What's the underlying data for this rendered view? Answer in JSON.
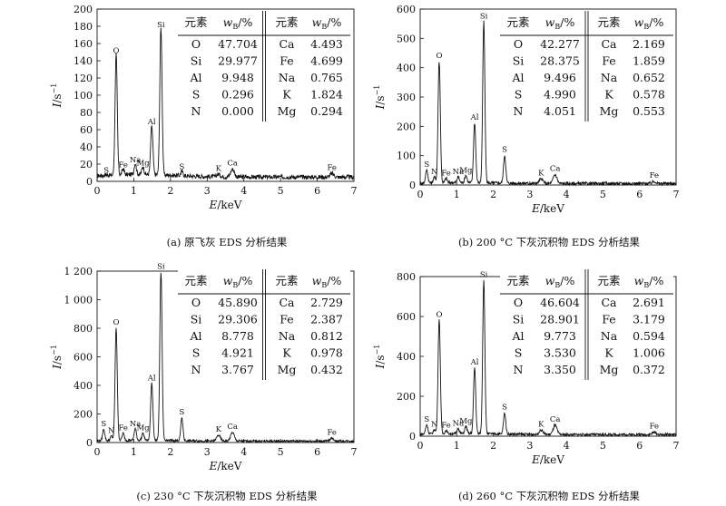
{
  "chart_data": [
    {
      "type": "line",
      "caption": "(a) 原飞灰 EDS 分析结果",
      "xlabel_var": "E",
      "xlabel_unit": "/keV",
      "ylabel_var": "I",
      "ylabel_unit": "/s",
      "xlim": [
        0,
        7
      ],
      "ylim": [
        0,
        200
      ],
      "xticks": [
        "0",
        "1",
        "2",
        "3",
        "4",
        "5",
        "6",
        "7"
      ],
      "yticks": [
        "0",
        "20",
        "40",
        "60",
        "80",
        "100",
        "120",
        "140",
        "160",
        "180",
        "200"
      ],
      "baseline": 5,
      "noise": 2.5,
      "peaks": [
        {
          "label": "S",
          "x": 0.25,
          "y": 6
        },
        {
          "label": "O",
          "x": 0.52,
          "y": 145
        },
        {
          "label": "Fe",
          "x": 0.71,
          "y": 12
        },
        {
          "label": "Na",
          "x": 1.04,
          "y": 18
        },
        {
          "label": "Mg",
          "x": 1.25,
          "y": 14
        },
        {
          "label": "Al",
          "x": 1.49,
          "y": 62
        },
        {
          "label": "Si",
          "x": 1.74,
          "y": 175
        },
        {
          "label": "S",
          "x": 2.31,
          "y": 10
        },
        {
          "label": "K",
          "x": 3.31,
          "y": 8
        },
        {
          "label": "Ca",
          "x": 3.69,
          "y": 14
        },
        {
          "label": "Fe",
          "x": 6.4,
          "y": 9
        }
      ],
      "table": {
        "header": [
          "元素",
          "w_B/%",
          "元素",
          "w_B/%"
        ],
        "rows": [
          [
            "O",
            "47.704",
            "Ca",
            "4.493"
          ],
          [
            "Si",
            "29.977",
            "Fe",
            "4.699"
          ],
          [
            "Al",
            "9.948",
            "Na",
            "0.765"
          ],
          [
            "S",
            "0.296",
            "K",
            "1.824"
          ],
          [
            "N",
            "0.000",
            "Mg",
            "0.294"
          ]
        ]
      }
    },
    {
      "type": "line",
      "caption": "(b) 200 °C 下灰沉积物 EDS 分析结果",
      "xlabel_var": "E",
      "xlabel_unit": "/keV",
      "ylabel_var": "I",
      "ylabel_unit": "/s",
      "xlim": [
        0,
        7
      ],
      "ylim": [
        0,
        600
      ],
      "xticks": [
        "0",
        "1",
        "2",
        "3",
        "4",
        "5",
        "6",
        "7"
      ],
      "yticks": [
        "0",
        "100",
        "200",
        "300",
        "400",
        "500",
        "600"
      ],
      "baseline": 5,
      "noise": 5,
      "peaks": [
        {
          "label": "S",
          "x": 0.18,
          "y": 50
        },
        {
          "label": "N",
          "x": 0.39,
          "y": 25
        },
        {
          "label": "O",
          "x": 0.52,
          "y": 420
        },
        {
          "label": "Fe",
          "x": 0.71,
          "y": 20
        },
        {
          "label": "Na",
          "x": 1.04,
          "y": 25
        },
        {
          "label": "Mg",
          "x": 1.25,
          "y": 30
        },
        {
          "label": "Al",
          "x": 1.49,
          "y": 210
        },
        {
          "label": "Si",
          "x": 1.74,
          "y": 555
        },
        {
          "label": "S",
          "x": 2.31,
          "y": 100
        },
        {
          "label": "K",
          "x": 3.31,
          "y": 20
        },
        {
          "label": "Ca",
          "x": 3.69,
          "y": 35
        },
        {
          "label": "Fe",
          "x": 6.4,
          "y": 12
        }
      ],
      "table": {
        "header": [
          "元素",
          "w_B/%",
          "元素",
          "w_B/%"
        ],
        "rows": [
          [
            "O",
            "42.277",
            "Ca",
            "2.169"
          ],
          [
            "Si",
            "28.375",
            "Fe",
            "1.859"
          ],
          [
            "Al",
            "9.496",
            "Na",
            "0.652"
          ],
          [
            "S",
            "4.990",
            "K",
            "0.578"
          ],
          [
            "N",
            "4.051",
            "Mg",
            "0.553"
          ]
        ]
      }
    },
    {
      "type": "line",
      "caption": "(c) 230 °C 下灰沉积物 EDS 分析结果",
      "xlabel_var": "E",
      "xlabel_unit": "/keV",
      "ylabel_var": "I",
      "ylabel_unit": "/s",
      "xlim": [
        0,
        7
      ],
      "ylim": [
        0,
        1200
      ],
      "xticks": [
        "0",
        "1",
        "2",
        "3",
        "4",
        "5",
        "6",
        "7"
      ],
      "yticks": [
        "0",
        "200",
        "400",
        "600",
        "800",
        "1 000",
        "1 200"
      ],
      "baseline": 10,
      "noise": 8,
      "peaks": [
        {
          "label": "S",
          "x": 0.18,
          "y": 90
        },
        {
          "label": "N",
          "x": 0.39,
          "y": 40
        },
        {
          "label": "O",
          "x": 0.52,
          "y": 800
        },
        {
          "label": "Fe",
          "x": 0.71,
          "y": 60
        },
        {
          "label": "Na",
          "x": 1.04,
          "y": 90
        },
        {
          "label": "Mg",
          "x": 1.25,
          "y": 60
        },
        {
          "label": "Al",
          "x": 1.49,
          "y": 410
        },
        {
          "label": "Si",
          "x": 1.74,
          "y": 1190
        },
        {
          "label": "S",
          "x": 2.31,
          "y": 170
        },
        {
          "label": "K",
          "x": 3.31,
          "y": 50
        },
        {
          "label": "Ca",
          "x": 3.69,
          "y": 70
        },
        {
          "label": "Fe",
          "x": 6.4,
          "y": 30
        }
      ],
      "table": {
        "header": [
          "元素",
          "w_B/%",
          "元素",
          "w_B/%"
        ],
        "rows": [
          [
            "O",
            "45.890",
            "Ca",
            "2.729"
          ],
          [
            "Si",
            "29.306",
            "Fe",
            "2.387"
          ],
          [
            "Al",
            "8.778",
            "Na",
            "0.812"
          ],
          [
            "S",
            "4.921",
            "K",
            "0.978"
          ],
          [
            "N",
            "3.767",
            "Mg",
            "0.432"
          ]
        ]
      }
    },
    {
      "type": "line",
      "caption": "(d) 260 °C 下灰沉积物 EDS 分析结果",
      "xlabel_var": "E",
      "xlabel_unit": "/keV",
      "ylabel_var": "I",
      "ylabel_unit": "/s",
      "xlim": [
        0,
        7
      ],
      "ylim": [
        0,
        800
      ],
      "xticks": [
        "0",
        "1",
        "2",
        "3",
        "4",
        "5",
        "6",
        "7"
      ],
      "yticks": [
        "0",
        "200",
        "400",
        "600",
        "800"
      ],
      "baseline": 8,
      "noise": 6,
      "peaks": [
        {
          "label": "S",
          "x": 0.18,
          "y": 55
        },
        {
          "label": "N",
          "x": 0.39,
          "y": 30
        },
        {
          "label": "O",
          "x": 0.52,
          "y": 580
        },
        {
          "label": "Fe",
          "x": 0.71,
          "y": 25
        },
        {
          "label": "Na",
          "x": 1.04,
          "y": 35
        },
        {
          "label": "Mg",
          "x": 1.25,
          "y": 45
        },
        {
          "label": "Al",
          "x": 1.49,
          "y": 340
        },
        {
          "label": "Si",
          "x": 1.74,
          "y": 780
        },
        {
          "label": "S",
          "x": 2.31,
          "y": 115
        },
        {
          "label": "K",
          "x": 3.31,
          "y": 30
        },
        {
          "label": "Ca",
          "x": 3.69,
          "y": 55
        },
        {
          "label": "Fe",
          "x": 6.4,
          "y": 20
        }
      ],
      "table": {
        "header": [
          "元素",
          "w_B/%",
          "元素",
          "w_B/%"
        ],
        "rows": [
          [
            "O",
            "46.604",
            "Ca",
            "2.691"
          ],
          [
            "Si",
            "28.901",
            "Fe",
            "3.179"
          ],
          [
            "Al",
            "9.773",
            "Na",
            "0.594"
          ],
          [
            "S",
            "3.530",
            "K",
            "1.006"
          ],
          [
            "N",
            "3.350",
            "Mg",
            "0.372"
          ]
        ]
      }
    }
  ]
}
